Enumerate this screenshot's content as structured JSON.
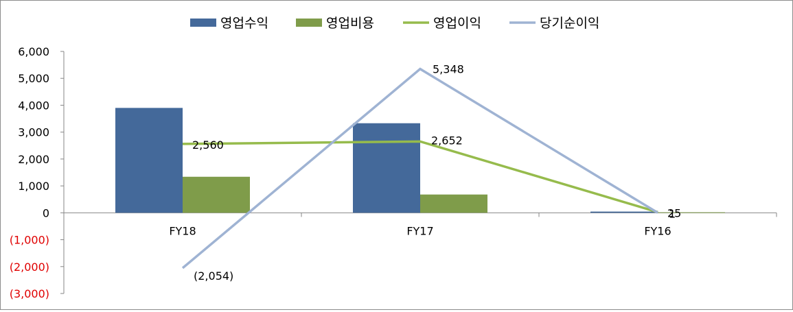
{
  "chart_data": {
    "type": "bar",
    "categories": [
      "FY18",
      "FY17",
      "FY16"
    ],
    "series": [
      {
        "name": "영업수익",
        "kind": "bar",
        "color": "#44699a",
        "values": [
          3900,
          3330,
          45
        ]
      },
      {
        "name": "영업비용",
        "kind": "bar",
        "color": "#7f9c4a",
        "values": [
          1340,
          680,
          20
        ]
      },
      {
        "name": "영업이익",
        "kind": "line",
        "color": "#96bb4c",
        "values": [
          2560,
          2652,
          25
        ]
      },
      {
        "name": "당기순이익",
        "kind": "line",
        "color": "#9fb3d3",
        "values": [
          -2054,
          5348,
          1
        ]
      }
    ],
    "data_labels": [
      {
        "series": "영업이익",
        "category": "FY18",
        "text": "2,560"
      },
      {
        "series": "영업이익",
        "category": "FY17",
        "text": "2,652"
      },
      {
        "series": "영업이익",
        "category": "FY16",
        "text": "25"
      },
      {
        "series": "당기순이익",
        "category": "FY18",
        "text": "(2,054)",
        "negative": true
      },
      {
        "series": "당기순이익",
        "category": "FY17",
        "text": "5,348"
      },
      {
        "series": "당기순이익",
        "category": "FY16",
        "text": "1"
      }
    ],
    "yticks": [
      {
        "value": 6000,
        "label": "6,000"
      },
      {
        "value": 5000,
        "label": "5,000"
      },
      {
        "value": 4000,
        "label": "4,000"
      },
      {
        "value": 3000,
        "label": "3,000"
      },
      {
        "value": 2000,
        "label": "2,000"
      },
      {
        "value": 1000,
        "label": "1,000"
      },
      {
        "value": 0,
        "label": "0"
      },
      {
        "value": -1000,
        "label": "(1,000)",
        "negative": true
      },
      {
        "value": -2000,
        "label": "(2,000)",
        "negative": true
      },
      {
        "value": -3000,
        "label": "(3,000)",
        "negative": true
      }
    ],
    "ylim": [
      -3000,
      6000
    ],
    "negative_label_color": "#e00000",
    "title": "",
    "xlabel": "",
    "ylabel": "",
    "grid": false,
    "legend_position": "top-center"
  }
}
